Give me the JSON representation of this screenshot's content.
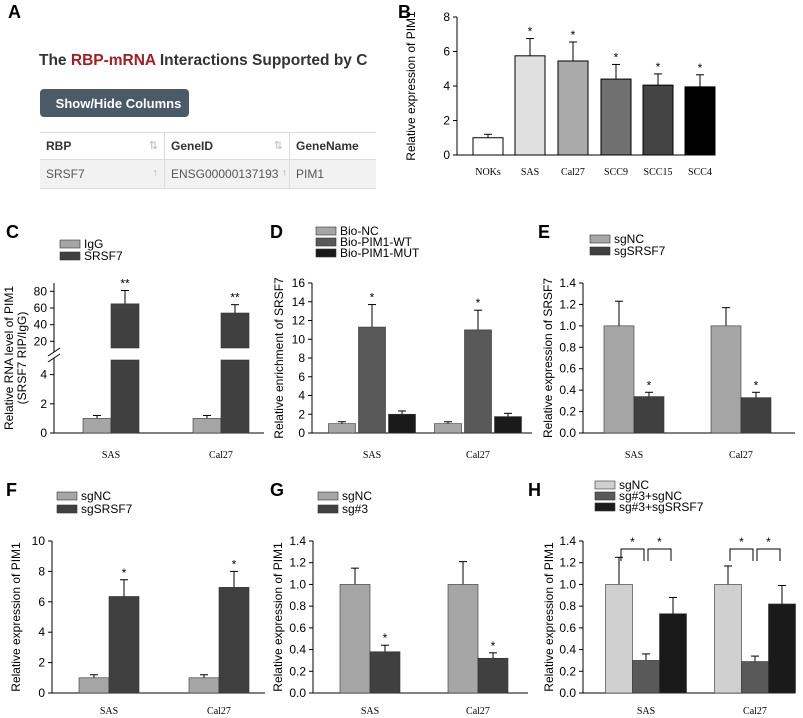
{
  "panel_letters": [
    "A",
    "B",
    "C",
    "D",
    "E",
    "F",
    "G",
    "H"
  ],
  "panelA": {
    "title_prefix": "The ",
    "title_highlight": "RBP-mRNA",
    "title_suffix": " Interactions Supported by C",
    "button_label": "Show/Hide Columns",
    "caret": "▾",
    "sort_icon": "⇅",
    "sort_up_icon": "↑",
    "headers": [
      "RBP",
      "GeneID",
      "GeneName"
    ],
    "row": [
      "SRSF7",
      "ENSG00000137193",
      "PIM1"
    ],
    "colors": {
      "highlight": "#a51d22",
      "button": "#4a5a66",
      "geneid": "#cc33cc"
    }
  },
  "chart_data": [
    {
      "id": "B",
      "type": "bar",
      "ylabel": "Relative expression of PIM1",
      "ylim": [
        0,
        8
      ],
      "yticks": [
        0,
        2,
        4,
        6,
        8
      ],
      "categories": [
        "NOKs",
        "SAS",
        "Cal27",
        "SCC9",
        "SCC15",
        "SCC4"
      ],
      "series": [
        {
          "name": "PIM1",
          "values": [
            1.0,
            5.75,
            5.45,
            4.4,
            4.05,
            3.95
          ],
          "errors": [
            0.2,
            1.0,
            1.1,
            0.85,
            0.65,
            0.7
          ],
          "colors": [
            "#ffffff",
            "#e0e0e0",
            "#aaaaaa",
            "#707070",
            "#444444",
            "#000000"
          ]
        }
      ],
      "annotations": [
        "",
        "*",
        "*",
        "*",
        "*",
        "*"
      ]
    },
    {
      "id": "C",
      "type": "bar",
      "ylabel": [
        "Relative RNA level of PIM1",
        "(SRSF7 RIP/IgG)"
      ],
      "broken_axis": true,
      "upper_ticks": [
        20,
        40,
        60,
        80
      ],
      "lower_ticks": [
        0,
        2,
        4
      ],
      "categories": [
        "SAS",
        "Cal27"
      ],
      "series": [
        {
          "name": "IgG",
          "values": [
            1.0,
            1.0
          ],
          "errors": [
            0.2,
            0.2
          ],
          "color": "#a6a6a6"
        },
        {
          "name": "SRSF7",
          "values": [
            65,
            54
          ],
          "errors": [
            16,
            10
          ],
          "color": "#404040"
        }
      ],
      "annotations": [
        [
          "",
          "**"
        ],
        [
          "",
          "**"
        ]
      ]
    },
    {
      "id": "D",
      "type": "bar",
      "ylabel": "Relative enrichment of SRSF7",
      "ylim": [
        0,
        16
      ],
      "yticks": [
        0,
        2,
        4,
        6,
        8,
        10,
        12,
        14,
        16
      ],
      "categories": [
        "SAS",
        "Cal27"
      ],
      "series": [
        {
          "name": "Bio-NC",
          "values": [
            1.0,
            1.0
          ],
          "errors": [
            0.2,
            0.2
          ],
          "color": "#a6a6a6"
        },
        {
          "name": "Bio-PIM1-WT",
          "values": [
            11.3,
            11.0
          ],
          "errors": [
            2.4,
            2.1
          ],
          "color": "#595959"
        },
        {
          "name": "Bio-PIM1-MUT",
          "values": [
            2.0,
            1.75
          ],
          "errors": [
            0.35,
            0.35
          ],
          "color": "#1a1a1a"
        }
      ],
      "annotations": [
        [
          "",
          "*",
          ""
        ],
        [
          "",
          "*",
          ""
        ]
      ]
    },
    {
      "id": "E",
      "type": "bar",
      "ylabel": "Relative expression of SRSF7",
      "ylim": [
        0,
        1.4
      ],
      "yticks": [
        0,
        0.2,
        0.4,
        0.6,
        0.8,
        1.0,
        1.2,
        1.4
      ],
      "categories": [
        "SAS",
        "Cal27"
      ],
      "series": [
        {
          "name": "sgNC",
          "values": [
            1.0,
            1.0
          ],
          "errors": [
            0.23,
            0.17
          ],
          "color": "#a6a6a6"
        },
        {
          "name": "sgSRSF7",
          "values": [
            0.34,
            0.33
          ],
          "errors": [
            0.04,
            0.05
          ],
          "color": "#404040"
        }
      ],
      "annotations": [
        [
          "",
          "*"
        ],
        [
          "",
          "*"
        ]
      ]
    },
    {
      "id": "F",
      "type": "bar",
      "ylabel": "Relative expression of PIM1",
      "ylim": [
        0,
        10
      ],
      "yticks": [
        0,
        2,
        4,
        6,
        8,
        10
      ],
      "categories": [
        "SAS",
        "Cal27"
      ],
      "series": [
        {
          "name": "sgNC",
          "values": [
            1.0,
            1.0
          ],
          "errors": [
            0.2,
            0.2
          ],
          "color": "#a6a6a6"
        },
        {
          "name": "sgSRSF7",
          "values": [
            6.35,
            6.95
          ],
          "errors": [
            1.1,
            1.05
          ],
          "color": "#404040"
        }
      ],
      "annotations": [
        [
          "",
          "*"
        ],
        [
          "",
          "*"
        ]
      ]
    },
    {
      "id": "G",
      "type": "bar",
      "ylabel": "Relative expression of PIM1",
      "ylim": [
        0,
        1.4
      ],
      "yticks": [
        0,
        0.2,
        0.4,
        0.6,
        0.8,
        1.0,
        1.2,
        1.4
      ],
      "categories": [
        "SAS",
        "Cal27"
      ],
      "series": [
        {
          "name": "sgNC",
          "values": [
            1.0,
            1.0
          ],
          "errors": [
            0.15,
            0.21
          ],
          "color": "#a6a6a6"
        },
        {
          "name": "sg#3",
          "values": [
            0.38,
            0.32
          ],
          "errors": [
            0.06,
            0.05
          ],
          "color": "#404040"
        }
      ],
      "annotations": [
        [
          "",
          "*"
        ],
        [
          "",
          "*"
        ]
      ]
    },
    {
      "id": "H",
      "type": "bar",
      "ylabel": "Relative expression of PIM1",
      "ylim": [
        0,
        1.4
      ],
      "yticks": [
        0,
        0.2,
        0.4,
        0.6,
        0.8,
        1.0,
        1.2,
        1.4
      ],
      "categories": [
        "SAS",
        "Cal27"
      ],
      "series": [
        {
          "name": "sgNC",
          "values": [
            1.0,
            1.0
          ],
          "errors": [
            0.25,
            0.17
          ],
          "color": "#d0d0d0"
        },
        {
          "name": "sg#3+sgNC",
          "values": [
            0.3,
            0.29
          ],
          "errors": [
            0.06,
            0.05
          ],
          "color": "#595959"
        },
        {
          "name": "sg#3+sgSRSF7",
          "values": [
            0.73,
            0.82
          ],
          "errors": [
            0.15,
            0.17
          ],
          "color": "#1a1a1a"
        }
      ],
      "brackets": [
        "*",
        "*"
      ]
    }
  ]
}
